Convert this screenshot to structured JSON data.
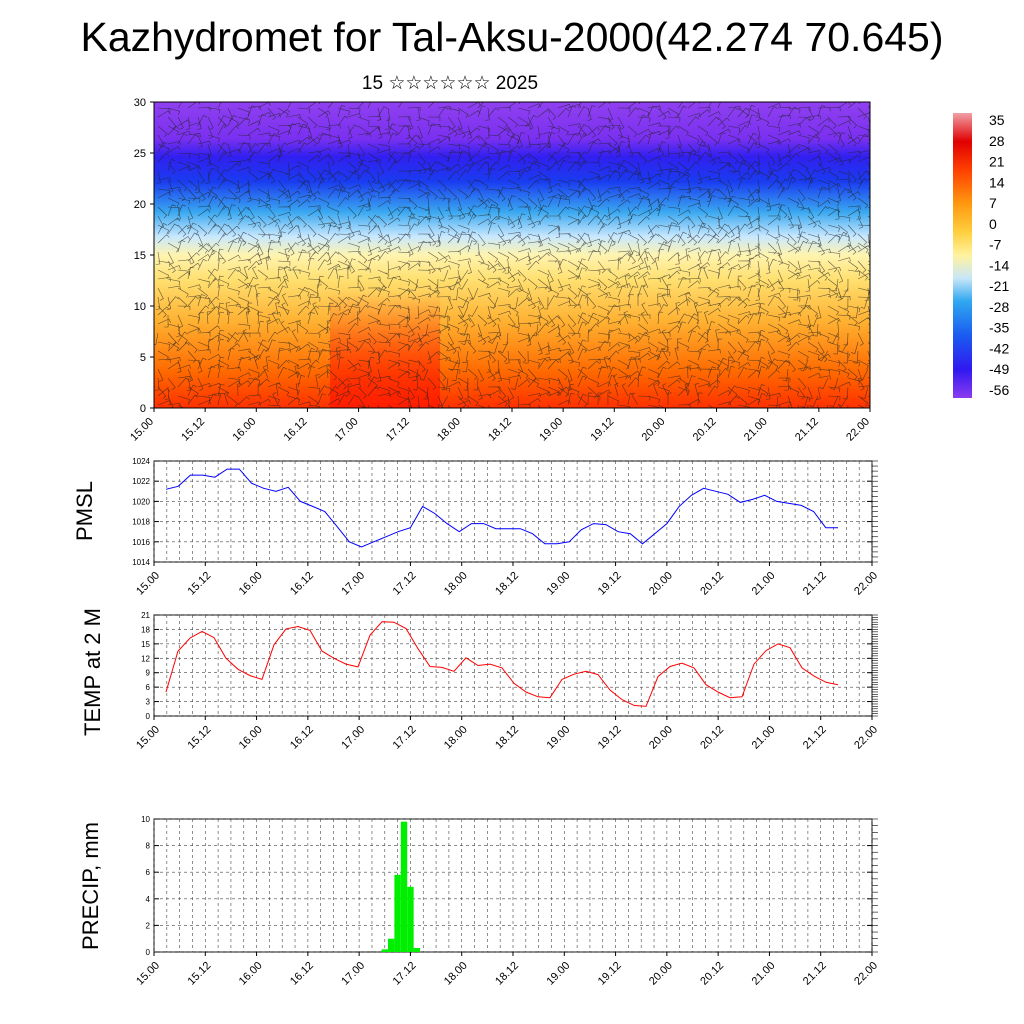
{
  "title": "Kazhydromet for Tal-Aksu-2000(42.274 70.645)",
  "subtitle": "15 ☆☆☆☆☆☆ 2025",
  "chart_data": [
    {
      "type": "heatmap",
      "name": "upper-air temperature and wind cross-section",
      "x_ticks": [
        "15.00",
        "15.12",
        "16.00",
        "16.12",
        "17.00",
        "17.12",
        "18.00",
        "18.12",
        "19.00",
        "19.12",
        "20.00",
        "20.12",
        "21.00",
        "21.12",
        "22.00"
      ],
      "y_ticks": [
        0,
        5,
        10,
        15,
        20,
        25,
        30
      ],
      "ylim": [
        0,
        30
      ],
      "colorbar_labels": [
        "35",
        "28",
        "21",
        "14",
        "7",
        "0",
        "-7",
        "-14",
        "-21",
        "-28",
        "-35",
        "-42",
        "-49",
        "-56"
      ],
      "colors": {
        "warm": "#ff2a00",
        "mid": "#ffe060",
        "cold": "#1a10e0",
        "top": "#8a3cf0"
      }
    },
    {
      "type": "line",
      "ylabel": "PMSL",
      "ylim": [
        1014,
        1024
      ],
      "y_ticks": [
        1014,
        1016,
        1018,
        1020,
        1022,
        1024
      ],
      "x_ticks": [
        "15.00",
        "15.12",
        "16.00",
        "16.12",
        "17.00",
        "17.12",
        "18.00",
        "18.12",
        "19.00",
        "19.12",
        "20.00",
        "20.12",
        "21.00",
        "21.12",
        "22.00"
      ],
      "color": "#0000ff",
      "values": [
        1021.2,
        1021.5,
        1022.6,
        1022.6,
        1022.4,
        1023.2,
        1023.2,
        1021.8,
        1021.3,
        1021.0,
        1021.4,
        1020.0,
        1019.5,
        1019.0,
        1017.5,
        1016.0,
        1015.5,
        1016.0,
        1016.5,
        1017.0,
        1017.4,
        1019.5,
        1018.8,
        1017.8,
        1017.0,
        1017.8,
        1017.8,
        1017.3,
        1017.3,
        1017.3,
        1016.8,
        1015.8,
        1015.8,
        1016.0,
        1017.2,
        1017.8,
        1017.7,
        1017.0,
        1016.8,
        1015.8,
        1016.8,
        1017.8,
        1019.5,
        1020.6,
        1021.3,
        1021.0,
        1020.7,
        1019.9,
        1020.2,
        1020.6,
        1020.0,
        1019.8,
        1019.6,
        1019.0,
        1017.4,
        1017.4
      ]
    },
    {
      "type": "line",
      "ylabel": "TEMP at 2 M",
      "ylim": [
        0,
        21
      ],
      "y_ticks": [
        0,
        3,
        6,
        9,
        12,
        15,
        18,
        21
      ],
      "x_ticks": [
        "15.00",
        "15.12",
        "16.00",
        "16.12",
        "17.00",
        "17.12",
        "18.00",
        "18.12",
        "19.00",
        "19.12",
        "20.00",
        "20.12",
        "21.00",
        "21.12",
        "22.00"
      ],
      "color": "#ff0000",
      "values": [
        5.0,
        13.5,
        16.2,
        17.6,
        16.3,
        12.0,
        9.7,
        8.4,
        7.6,
        14.8,
        18.1,
        18.6,
        17.8,
        13.5,
        12.0,
        10.8,
        10.2,
        16.8,
        19.6,
        19.5,
        18.2,
        14.0,
        10.3,
        10.1,
        9.3,
        12.1,
        10.5,
        10.8,
        10.0,
        6.8,
        5.0,
        4.0,
        3.8,
        7.6,
        8.7,
        9.3,
        8.6,
        5.4,
        3.4,
        2.2,
        2.0,
        8.2,
        10.3,
        11.0,
        10.0,
        6.5,
        5.0,
        3.8,
        4.0,
        10.8,
        13.6,
        15.0,
        14.2,
        10.0,
        8.3,
        7.0,
        6.5
      ]
    },
    {
      "type": "bar",
      "ylabel": "PRECIP, mm",
      "ylim": [
        0,
        10
      ],
      "y_ticks": [
        0,
        2,
        4,
        6,
        8,
        10
      ],
      "x_ticks": [
        "15.00",
        "15.12",
        "16.00",
        "16.12",
        "17.00",
        "17.12",
        "18.00",
        "18.12",
        "19.00",
        "19.12",
        "20.00",
        "20.12",
        "21.00",
        "21.12",
        "22.00"
      ],
      "color": "#00ee00",
      "bars": [
        {
          "x": 36,
          "value": 0.2
        },
        {
          "x": 37,
          "value": 1.0
        },
        {
          "x": 38,
          "value": 5.8
        },
        {
          "x": 39,
          "value": 9.8
        },
        {
          "x": 40,
          "value": 4.9
        },
        {
          "x": 41,
          "value": 0.3
        }
      ],
      "x_points_per_day": 8
    }
  ]
}
